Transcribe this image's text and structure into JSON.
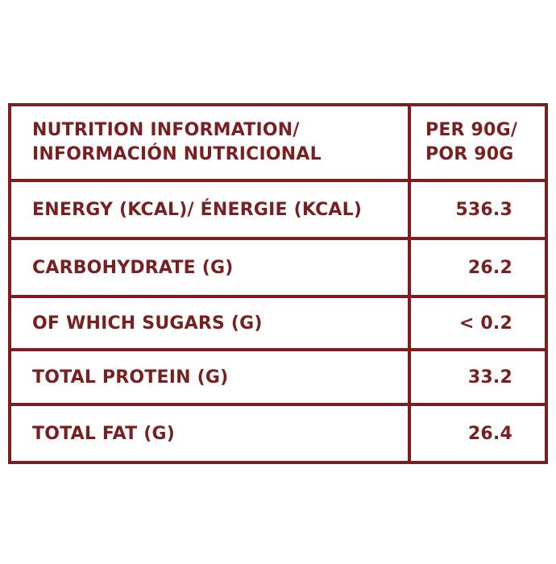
{
  "header": {
    "title_line1": "NUTRITION INFORMATION/",
    "title_line2": "INFORMACIÓN NUTRICIONAL",
    "per_line1": "PER 90G/",
    "per_line2": "POR 90G"
  },
  "rows": [
    {
      "label": "ENERGY (KCAL)/ ÉNERGIE (KCAL)",
      "value": "536.3"
    },
    {
      "label": "CARBOHYDRATE (G)",
      "value": "26.2"
    },
    {
      "label": "OF WHICH SUGARS (G)",
      "value": "< 0.2"
    },
    {
      "label": "TOTAL PROTEIN (G)",
      "value": "33.2"
    },
    {
      "label": "TOTAL FAT (G)",
      "value": "26.4"
    }
  ],
  "colors": {
    "accent": "#7a1f1f",
    "background": "#ffffff"
  }
}
